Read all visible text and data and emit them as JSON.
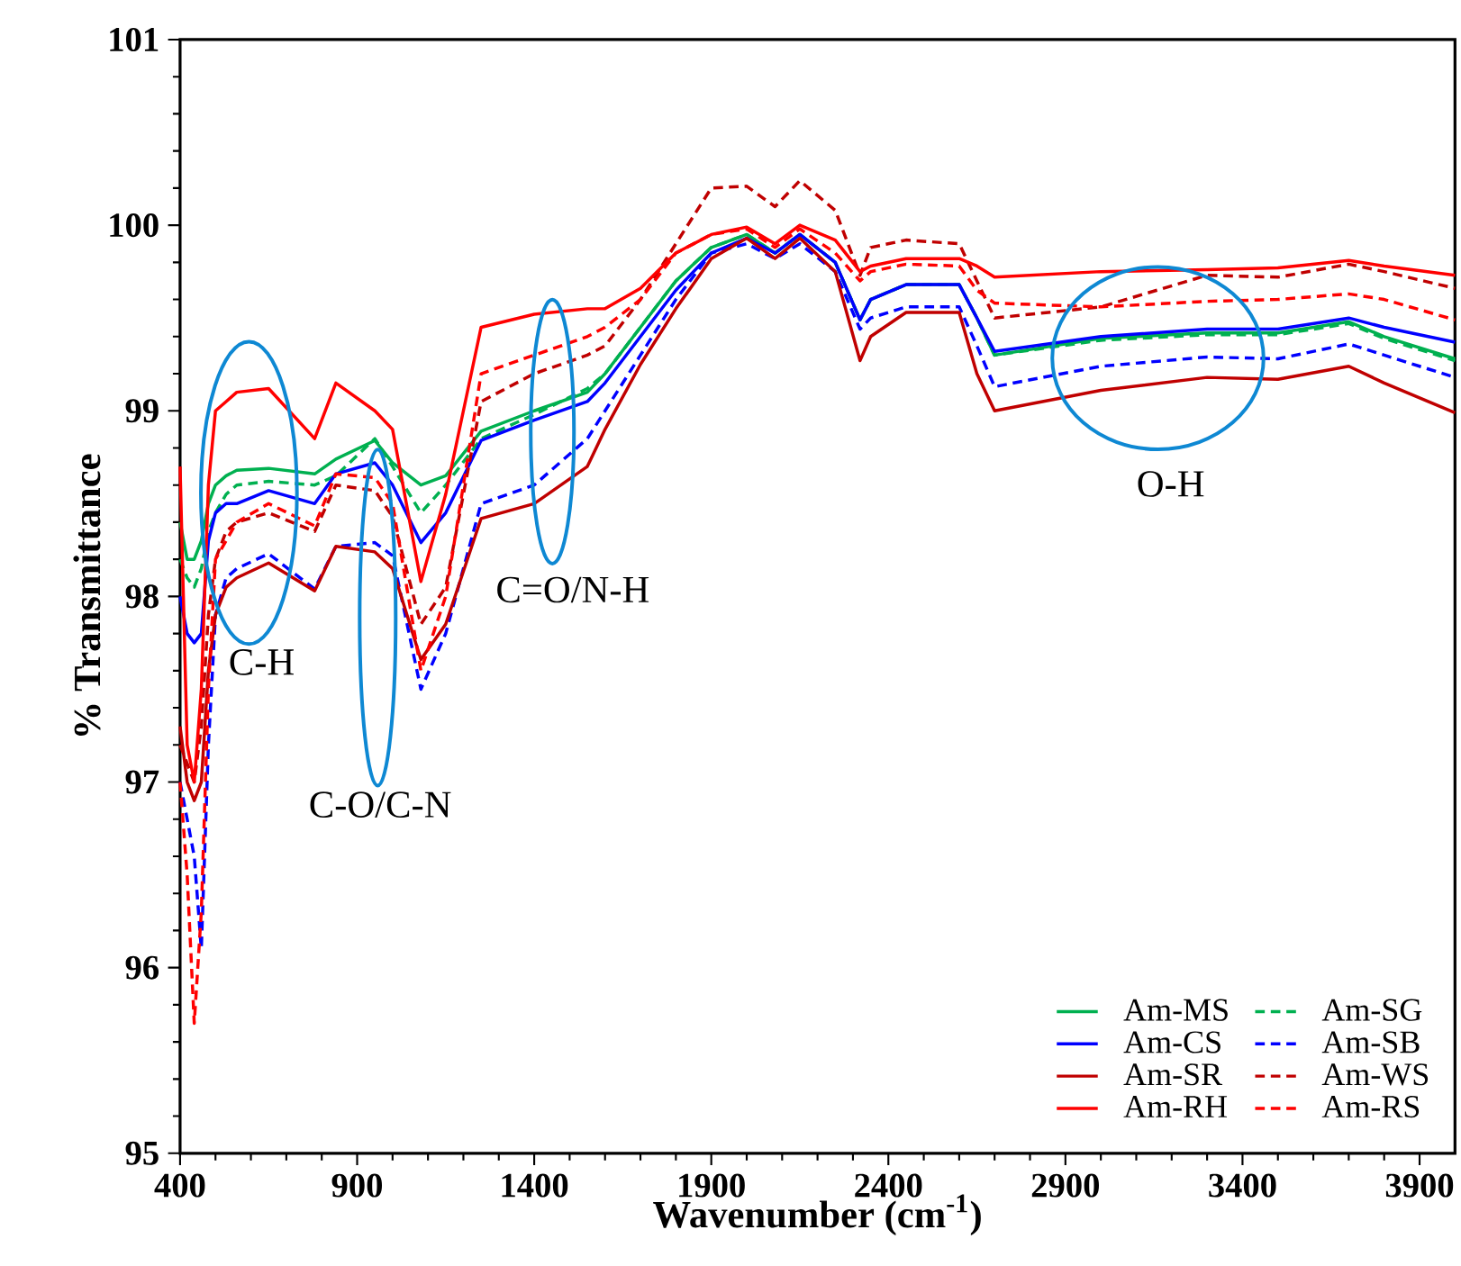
{
  "chart_data": {
    "type": "line",
    "xlabel": "Wavenumber (cm$^{-1}$)",
    "ylabel": "% Transmittance",
    "x": [
      400,
      420,
      440,
      460,
      480,
      500,
      530,
      560,
      650,
      780,
      840,
      950,
      1000,
      1080,
      1150,
      1250,
      1400,
      1550,
      1600,
      1700,
      1800,
      1900,
      2000,
      2080,
      2150,
      2250,
      2320,
      2350,
      2450,
      2600,
      2650,
      2700,
      3000,
      3300,
      3500,
      3700,
      3800,
      4000
    ],
    "xlim": [
      400,
      4000
    ],
    "xticks": [
      400,
      900,
      1400,
      1900,
      2400,
      2900,
      3400,
      3900
    ],
    "ylim": [
      95,
      101
    ],
    "yticks": [
      95,
      96,
      97,
      98,
      99,
      100,
      101
    ],
    "grid": false,
    "legend": "bottom right",
    "marker": "none",
    "series": [
      {
        "name": "Am-MS",
        "color": "#00b050",
        "line_style": "solid",
        "values": [
          98.4,
          98.2,
          98.2,
          98.3,
          98.5,
          98.6,
          98.65,
          98.68,
          98.69,
          98.66,
          98.74,
          98.84,
          98.72,
          98.6,
          98.65,
          98.89,
          99.0,
          99.1,
          99.2,
          99.45,
          99.7,
          99.88,
          99.95,
          99.85,
          99.95,
          99.8,
          99.49,
          99.6,
          99.68,
          99.68,
          99.5,
          99.3,
          99.39,
          99.42,
          99.42,
          99.48,
          99.4,
          99.28
        ]
      },
      {
        "name": "Am-SG",
        "color": "#00b050",
        "line_style": "dashed",
        "values": [
          98.2,
          98.1,
          98.05,
          98.15,
          98.35,
          98.45,
          98.55,
          98.6,
          98.62,
          98.6,
          98.65,
          98.85,
          98.7,
          98.45,
          98.6,
          98.85,
          98.98,
          99.12,
          99.2,
          99.45,
          99.7,
          99.88,
          99.95,
          99.85,
          99.95,
          99.8,
          99.49,
          99.6,
          99.68,
          99.68,
          99.5,
          99.3,
          99.38,
          99.41,
          99.41,
          99.47,
          99.39,
          99.27
        ]
      },
      {
        "name": "Am-CS",
        "color": "#0000ff",
        "line_style": "solid",
        "values": [
          98.0,
          97.8,
          97.75,
          97.8,
          98.3,
          98.45,
          98.5,
          98.5,
          98.57,
          98.5,
          98.66,
          98.72,
          98.6,
          98.29,
          98.45,
          98.84,
          98.95,
          99.05,
          99.15,
          99.4,
          99.65,
          99.85,
          99.93,
          99.85,
          99.95,
          99.8,
          99.49,
          99.6,
          99.68,
          99.68,
          99.5,
          99.32,
          99.4,
          99.44,
          99.44,
          99.5,
          99.45,
          99.37
        ]
      },
      {
        "name": "Am-SB",
        "color": "#0000ff",
        "line_style": "dashed",
        "values": [
          97.0,
          96.8,
          96.6,
          96.1,
          97.2,
          97.9,
          98.1,
          98.15,
          98.23,
          98.04,
          98.27,
          98.29,
          98.22,
          97.5,
          97.8,
          98.5,
          98.6,
          98.85,
          99.0,
          99.3,
          99.6,
          99.85,
          99.9,
          99.82,
          99.9,
          99.75,
          99.44,
          99.5,
          99.56,
          99.56,
          99.35,
          99.13,
          99.24,
          99.29,
          99.28,
          99.36,
          99.3,
          99.18
        ]
      },
      {
        "name": "Am-SR",
        "color": "#c00000",
        "line_style": "solid",
        "values": [
          97.3,
          97.0,
          96.9,
          97.0,
          97.6,
          97.9,
          98.05,
          98.1,
          98.18,
          98.03,
          98.27,
          98.24,
          98.15,
          97.66,
          97.85,
          98.42,
          98.5,
          98.7,
          98.9,
          99.25,
          99.55,
          99.82,
          99.93,
          99.82,
          99.93,
          99.75,
          99.27,
          99.4,
          99.53,
          99.53,
          99.2,
          99.0,
          99.11,
          99.18,
          99.17,
          99.24,
          99.15,
          98.99
        ]
      },
      {
        "name": "Am-WS",
        "color": "#c00000",
        "line_style": "dashed",
        "values": [
          97.2,
          97.1,
          97.0,
          97.3,
          97.9,
          98.2,
          98.35,
          98.4,
          98.45,
          98.35,
          98.6,
          98.57,
          98.43,
          97.85,
          98.05,
          99.05,
          99.2,
          99.3,
          99.35,
          99.6,
          99.9,
          100.2,
          100.21,
          100.1,
          100.24,
          100.08,
          99.73,
          99.88,
          99.92,
          99.9,
          99.7,
          99.5,
          99.56,
          99.73,
          99.72,
          99.79,
          99.75,
          99.66
        ]
      },
      {
        "name": "Am-RH",
        "color": "#ff0000",
        "line_style": "solid",
        "values": [
          98.7,
          97.2,
          97.0,
          97.5,
          98.6,
          99.0,
          99.05,
          99.1,
          99.12,
          98.85,
          99.15,
          99.0,
          98.9,
          98.08,
          98.55,
          99.45,
          99.52,
          99.55,
          99.55,
          99.66,
          99.85,
          99.95,
          99.99,
          99.9,
          100.0,
          99.92,
          99.75,
          99.78,
          99.82,
          99.82,
          99.78,
          99.72,
          99.75,
          99.76,
          99.77,
          99.81,
          99.78,
          99.73
        ]
      },
      {
        "name": "Am-RS",
        "color": "#ff0000",
        "line_style": "dashed",
        "values": [
          97.0,
          96.5,
          95.7,
          96.3,
          97.5,
          98.2,
          98.3,
          98.4,
          98.5,
          98.38,
          98.66,
          98.64,
          98.5,
          97.6,
          98.0,
          99.2,
          99.3,
          99.4,
          99.45,
          99.6,
          99.85,
          99.95,
          99.98,
          99.88,
          99.98,
          99.85,
          99.7,
          99.75,
          99.79,
          99.78,
          99.65,
          99.58,
          99.56,
          99.59,
          99.6,
          99.63,
          99.6,
          99.49
        ]
      }
    ],
    "annotations": [
      "C-H",
      "C-O/C-N",
      "C=O/N-H",
      "O-H"
    ]
  }
}
